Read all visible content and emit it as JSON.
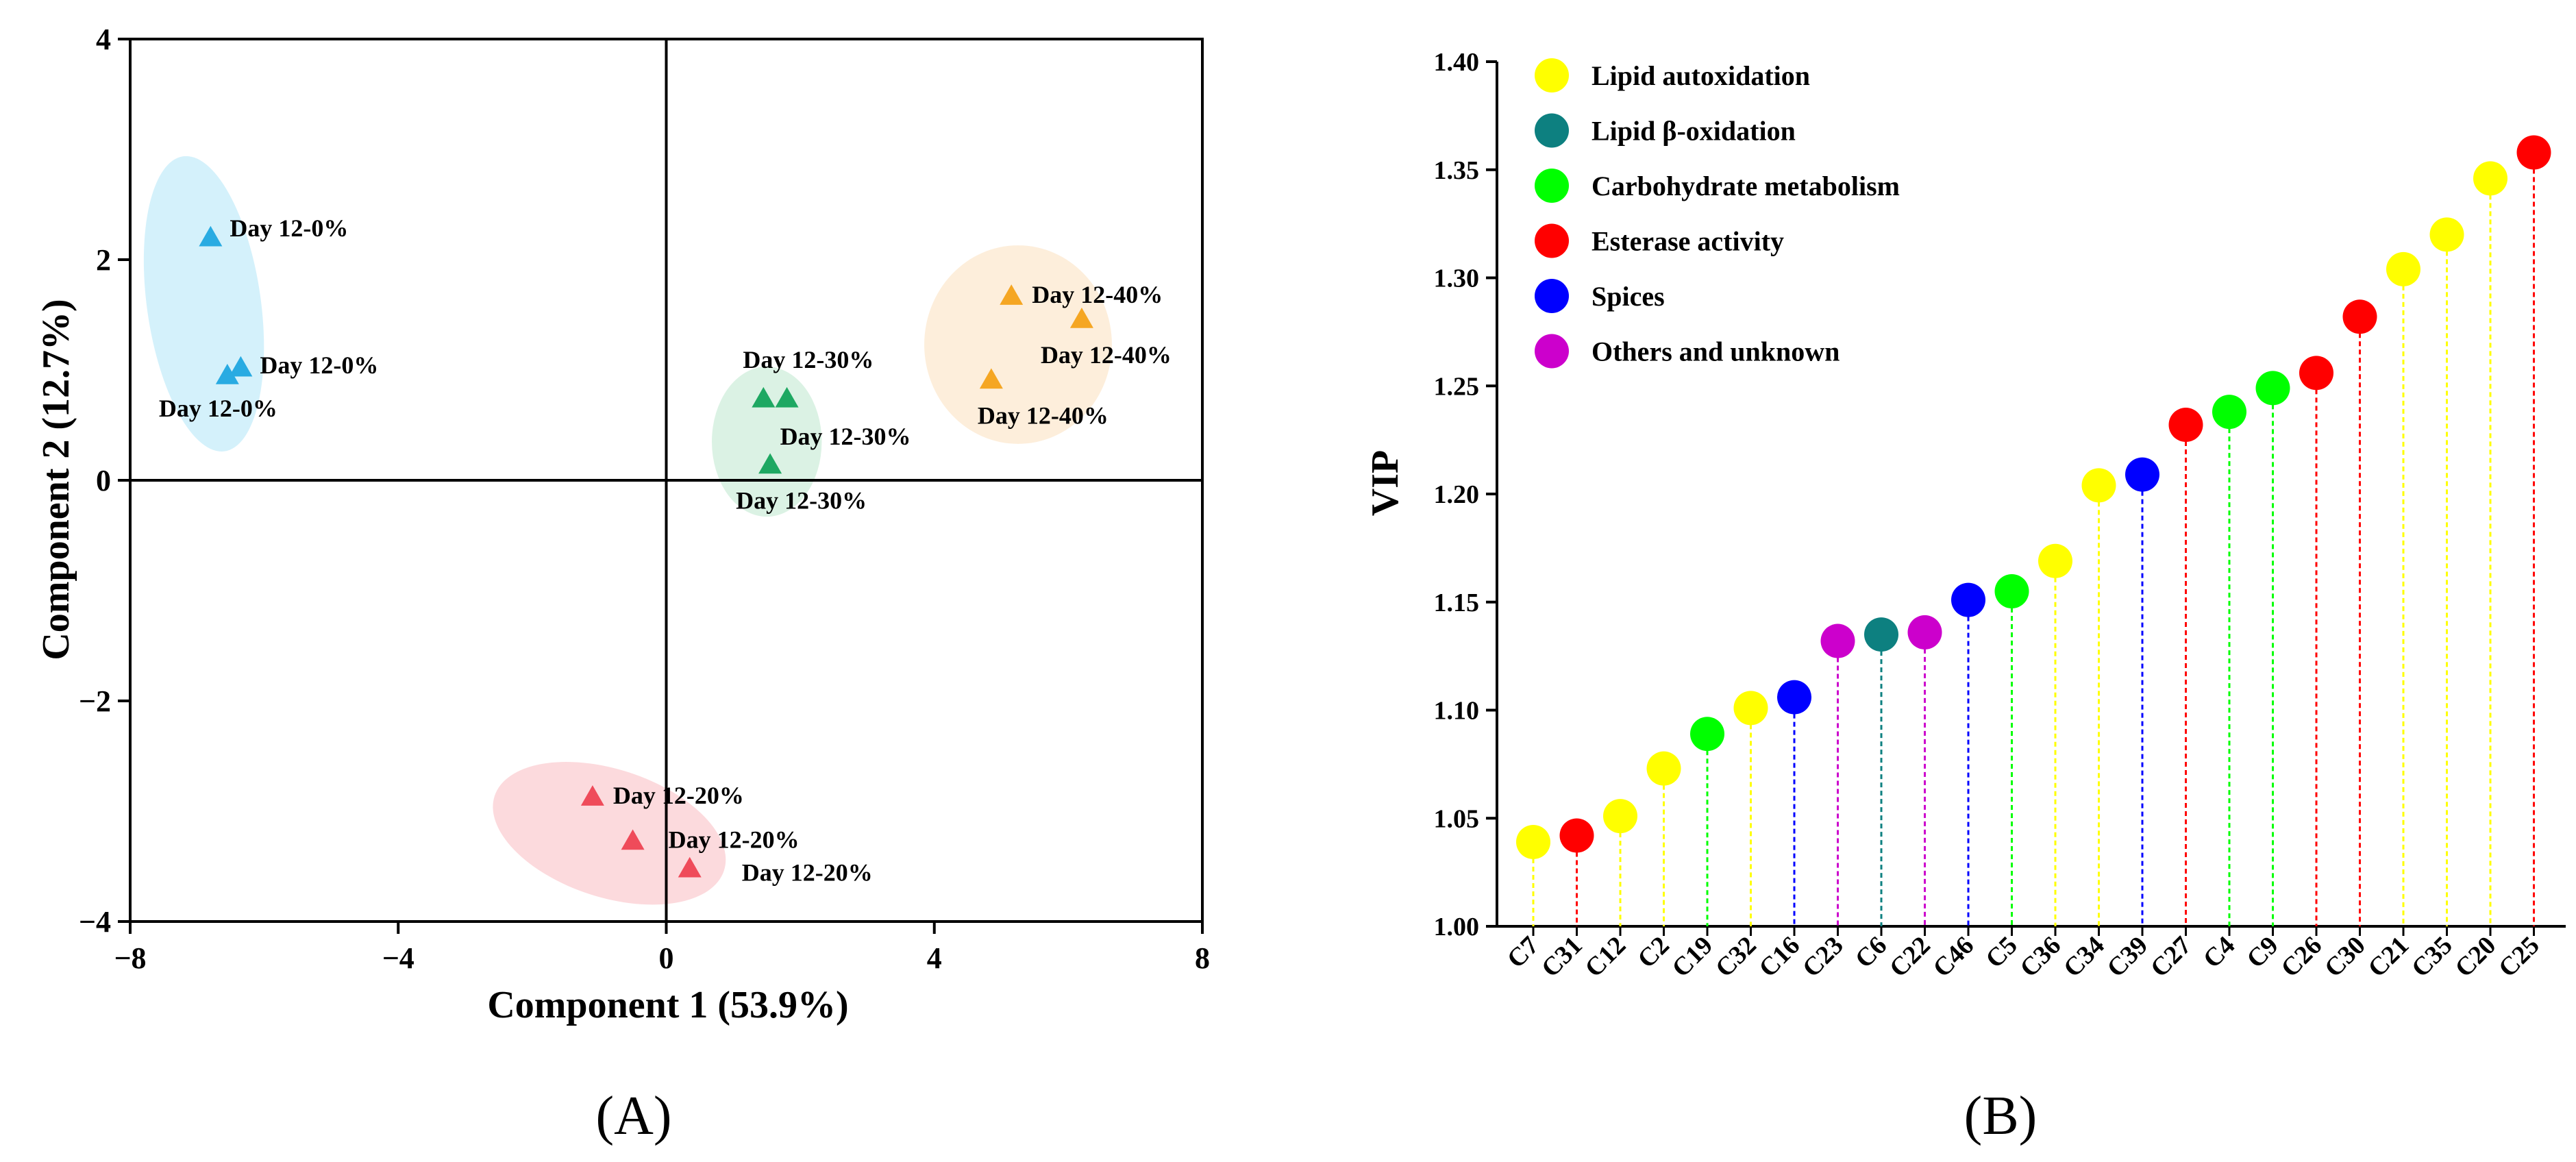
{
  "panel_labels": {
    "a": "(A)",
    "b": "(B)"
  },
  "colors": {
    "axis": "#000000"
  },
  "chart_data": [
    {
      "id": "A",
      "type": "scatter",
      "xlabel": "Component 1 (53.9%)",
      "ylabel": "Component 2 (12.7%)",
      "xlim": [
        -8,
        8
      ],
      "ylim": [
        -4,
        4
      ],
      "xticks": [
        -8,
        -4,
        0,
        4,
        8
      ],
      "yticks": [
        -4,
        -2,
        0,
        2,
        4
      ],
      "tick_labels_x": [
        "−8",
        "−4",
        "0",
        "4",
        "8"
      ],
      "tick_labels_y": [
        "−4",
        "−2",
        "0",
        "2",
        "4"
      ],
      "marker": "triangle",
      "groups": [
        {
          "name": "Day 12-0%",
          "color": "#29abe2",
          "fill": "#cdeefa",
          "ellipse": {
            "cx": -6.9,
            "cy": 1.6,
            "rx": 0.85,
            "ry": 1.35,
            "rotate_deg": -8
          },
          "points": [
            {
              "x": -6.8,
              "y": 2.2,
              "label": "Day 12-0%"
            },
            {
              "x": -6.35,
              "y": 1.02,
              "label": "Day 12-0%"
            },
            {
              "x": -6.55,
              "y": 0.95,
              "label": "Day 12-0%"
            }
          ]
        },
        {
          "name": "Day 12-30%",
          "color": "#1ea862",
          "fill": "#d5f0df",
          "ellipse": {
            "cx": 1.5,
            "cy": 0.35,
            "rx": 0.82,
            "ry": 0.68,
            "rotate_deg": 0
          },
          "points": [
            {
              "x": 1.45,
              "y": 0.74,
              "label": "Day 12-30%"
            },
            {
              "x": 1.8,
              "y": 0.74,
              "label": "Day 12-30%"
            },
            {
              "x": 1.55,
              "y": 0.14,
              "label": "Day 12-30%"
            }
          ]
        },
        {
          "name": "Day 12-40%",
          "color": "#f5a623",
          "fill": "#fdebd5",
          "ellipse": {
            "cx": 5.25,
            "cy": 1.23,
            "rx": 1.4,
            "ry": 0.9,
            "rotate_deg": 0
          },
          "points": [
            {
              "x": 5.15,
              "y": 1.67,
              "label": "Day 12-40%"
            },
            {
              "x": 6.2,
              "y": 1.46,
              "label": "Day 12-40%"
            },
            {
              "x": 4.85,
              "y": 0.91,
              "label": "Day 12-40%"
            }
          ]
        },
        {
          "name": "Day 12-20%",
          "color": "#ef4b5a",
          "fill": "#fbd3d7",
          "ellipse": {
            "cx": -0.85,
            "cy": -3.2,
            "rx": 1.8,
            "ry": 0.58,
            "rotate_deg": 18
          },
          "points": [
            {
              "x": -1.1,
              "y": -2.87,
              "label": "Day 12-20%"
            },
            {
              "x": -0.5,
              "y": -3.27,
              "label": "Day 12-20%"
            },
            {
              "x": 0.35,
              "y": -3.52,
              "label": "Day 12-20%"
            }
          ]
        }
      ]
    },
    {
      "id": "B",
      "type": "lollipop",
      "ylabel": "VIP",
      "xlabel": "",
      "ylim": [
        1.0,
        1.4
      ],
      "yticks": [
        "1.00",
        "1.05",
        "1.10",
        "1.15",
        "1.20",
        "1.25",
        "1.30",
        "1.35",
        "1.40"
      ],
      "legend_position": "top-left",
      "legend": [
        {
          "label": "Lipid autoxidation",
          "color": "#ffff00"
        },
        {
          "label": "Lipid β-oxidation",
          "color": "#0d8080"
        },
        {
          "label": "Carbohydrate metabolism",
          "color": "#00ff00"
        },
        {
          "label": "Esterase activity",
          "color": "#ff0000"
        },
        {
          "label": "Spices",
          "color": "#0000ff"
        },
        {
          "label": "Others and unknown",
          "color": "#cc00cc"
        }
      ],
      "categories": [
        "C7",
        "C31",
        "C12",
        "C2",
        "C19",
        "C32",
        "C16",
        "C23",
        "C6",
        "C22",
        "C46",
        "C5",
        "C36",
        "C34",
        "C39",
        "C27",
        "C4",
        "C9",
        "C26",
        "C30",
        "C21",
        "C35",
        "C20",
        "C25"
      ],
      "values": [
        1.039,
        1.042,
        1.051,
        1.073,
        1.089,
        1.101,
        1.106,
        1.132,
        1.135,
        1.136,
        1.151,
        1.155,
        1.169,
        1.204,
        1.209,
        1.232,
        1.238,
        1.249,
        1.256,
        1.282,
        1.304,
        1.32,
        1.346,
        1.358
      ],
      "colors": [
        "#ffff00",
        "#ff0000",
        "#ffff00",
        "#ffff00",
        "#00ff00",
        "#ffff00",
        "#0000ff",
        "#cc00cc",
        "#0d8080",
        "#cc00cc",
        "#0000ff",
        "#00ff00",
        "#ffff00",
        "#ffff00",
        "#0000ff",
        "#ff0000",
        "#00ff00",
        "#00ff00",
        "#ff0000",
        "#ff0000",
        "#ffff00",
        "#ffff00",
        "#ffff00",
        "#ff0000"
      ]
    }
  ]
}
